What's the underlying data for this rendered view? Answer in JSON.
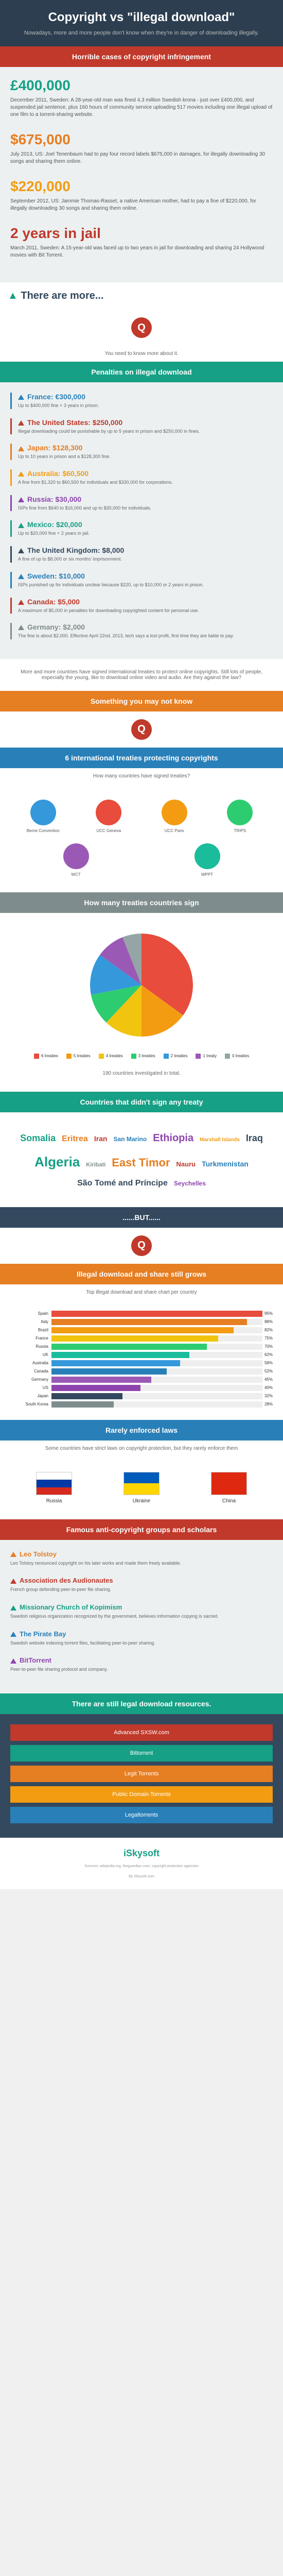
{
  "header": {
    "title": "Copyright vs \"illegal download\"",
    "subtitle": "Nowadays, more and more people don't know when they're in danger of downloading illegally."
  },
  "bands": {
    "horrible": "Horrible cases of copyright infringement",
    "penalties": "Penalties on illegal download",
    "unknown": "Something you may not know",
    "treaties": "6 international treaties protecting copyrights",
    "treaties_sub": "How many countries have signed treaties?",
    "treaty_count": "How many treaties countries sign",
    "not_signed": "Countries that didn't sign any treaty",
    "but": "......BUT......",
    "still_grows": "Illegal download and share still grows",
    "top_chart": "Top illegal download and share chart per country",
    "rarely": "Rarely enforced laws",
    "rarely_sub": "Some countries have strict laws on copyright protection, but they rarely enforce them",
    "famous": "Famous anti-copyright groups and scholars",
    "legal": "There are still legal download resources."
  },
  "cases": [
    {
      "amount": "£400,000",
      "color": "#16a085",
      "desc": "December 2011, Sweden: A 28-year-old man was fined 4.3 million Swedish krona - just over £400,000, and suspended jail sentence, plus 160 hours of community service uploading 517 movies including one illegal upload of one film to a torrent-sharing website."
    },
    {
      "amount": "$675,000",
      "color": "#e67e22",
      "desc": "July 2013, US: Joel Tenenbaum had to pay four record labels $675,000 in damages, for illegally downloading 30 songs and sharing them online."
    },
    {
      "amount": "$220,000",
      "color": "#f39c12",
      "desc": "September 2012, US: Jammie Thomas-Rasset, a native American mother, had to pay a fine of $220,000, for illegally downloading 30 songs and sharing them online."
    },
    {
      "amount": "2 years in jail",
      "color": "#c0392b",
      "desc": "March 2011, Sweden: A 15-year-old was faced up to two years in jail for downloading and sharing 24 Hollywood movies with Bit Torrent."
    }
  ],
  "more": "There are more...",
  "q_note": "You need to know more about it.",
  "penalties": [
    {
      "country": "France: €300,000",
      "color": "#2980b9",
      "desc": "Up to $400,000 fine + 3 years in prison."
    },
    {
      "country": "The United States: $250,000",
      "color": "#c0392b",
      "desc": "Illegal downloading could be punishable by up to 5 years in prison and $250,000 in fines."
    },
    {
      "country": "Japan: $128,300",
      "color": "#e67e22",
      "desc": "Up to 10 years in prison and a $128,300 fine."
    },
    {
      "country": "Australia: $60,500",
      "color": "#f39c12",
      "desc": "A fine from $1,320 to $60,500 for individuals and $330,000 for corporations."
    },
    {
      "country": "Russia: $30,000",
      "color": "#8e44ad",
      "desc": "ISPs fine from $640 to $16,000 and up to $30,000 for individuals."
    },
    {
      "country": "Mexico: $20,000",
      "color": "#16a085",
      "desc": "Up to $20,000 fine + 2 years in jail."
    },
    {
      "country": "The United Kingdom: $8,000",
      "color": "#34495e",
      "desc": "A fine of up to $8,000 or six months' imprisonment."
    },
    {
      "country": "Sweden: $10,000",
      "color": "#2980b9",
      "desc": "ISPs punished up for individuals unclear because $220, up to $10,000 or 2 years in prison."
    },
    {
      "country": "Canada: $5,000",
      "color": "#c0392b",
      "desc": "A maximum of $5,000 in penalties for downloading copyrighted content for personal use."
    },
    {
      "country": "Germany: $2,000",
      "color": "#7f8c8d",
      "desc": "The fine is about $2,000. Effective April 22nd, 2013, tech says a lost profit, first time they are liable to pay."
    }
  ],
  "penalties_note": "More and more countries have signed international treaties to protect online copyrights. Still lots of people, especially the young, like to download online video and audio. Are they against the law?",
  "treaties": [
    {
      "label": "Berne Convention",
      "color": "#3498db"
    },
    {
      "label": "UCC Geneva",
      "color": "#e74c3c"
    },
    {
      "label": "UCC Paris",
      "color": "#f39c12"
    },
    {
      "label": "TRIPS",
      "color": "#2ecc71"
    },
    {
      "label": "WCT",
      "color": "#9b59b6"
    },
    {
      "label": "WPPT",
      "color": "#1abc9c"
    }
  ],
  "pie": {
    "slices": [
      {
        "label": "6 treaties",
        "value": 35,
        "color": "#e74c3c"
      },
      {
        "label": "5 treaties",
        "value": 15,
        "color": "#f39c12"
      },
      {
        "label": "4 treaties",
        "value": 12,
        "color": "#f1c40f"
      },
      {
        "label": "3 treaties",
        "value": 10,
        "color": "#2ecc71"
      },
      {
        "label": "2 treaties",
        "value": 13,
        "color": "#3498db"
      },
      {
        "label": "1 treaty",
        "value": 9,
        "color": "#9b59b6"
      },
      {
        "label": "0 treaties",
        "value": 6,
        "color": "#95a5a6"
      }
    ],
    "total_note": "190 countries investigated in total."
  },
  "cloud": [
    {
      "text": "Somalia",
      "size": 18,
      "color": "#16a085"
    },
    {
      "text": "Eritrea",
      "size": 16,
      "color": "#e67e22"
    },
    {
      "text": "Iran",
      "size": 14,
      "color": "#c0392b"
    },
    {
      "text": "San Marino",
      "size": 12,
      "color": "#2980b9"
    },
    {
      "text": "Ethiopia",
      "size": 20,
      "color": "#8e44ad"
    },
    {
      "text": "Marshall Islands",
      "size": 10,
      "color": "#f39c12"
    },
    {
      "text": "Iraq",
      "size": 18,
      "color": "#34495e"
    },
    {
      "text": "Algeria",
      "size": 26,
      "color": "#16a085"
    },
    {
      "text": "Kiribati",
      "size": 11,
      "color": "#7f8c8d"
    },
    {
      "text": "East Timor",
      "size": 22,
      "color": "#e67e22"
    },
    {
      "text": "Nauru",
      "size": 13,
      "color": "#c0392b"
    },
    {
      "text": "Turkmenistan",
      "size": 14,
      "color": "#2980b9"
    },
    {
      "text": "São Tomé and Príncipe",
      "size": 16,
      "color": "#34495e"
    },
    {
      "text": "Seychelles",
      "size": 12,
      "color": "#8e44ad"
    }
  ],
  "bars": [
    {
      "label": "Spain",
      "value": 95,
      "color": "#e74c3c"
    },
    {
      "label": "Italy",
      "value": 88,
      "color": "#e67e22"
    },
    {
      "label": "Brazil",
      "value": 82,
      "color": "#f39c12"
    },
    {
      "label": "France",
      "value": 75,
      "color": "#f1c40f"
    },
    {
      "label": "Russia",
      "value": 70,
      "color": "#2ecc71"
    },
    {
      "label": "UK",
      "value": 62,
      "color": "#1abc9c"
    },
    {
      "label": "Australia",
      "value": 58,
      "color": "#3498db"
    },
    {
      "label": "Canada",
      "value": 52,
      "color": "#2980b9"
    },
    {
      "label": "Germany",
      "value": 45,
      "color": "#9b59b6"
    },
    {
      "label": "US",
      "value": 40,
      "color": "#8e44ad"
    },
    {
      "label": "Japan",
      "value": 32,
      "color": "#34495e"
    },
    {
      "label": "South Korea",
      "value": 28,
      "color": "#7f8c8d"
    }
  ],
  "flags": [
    {
      "label": "Russia",
      "colors": [
        "#fff",
        "#0039a6",
        "#d52b1e"
      ]
    },
    {
      "label": "Ukraine",
      "colors": [
        "#005bbb",
        "#ffd500"
      ]
    },
    {
      "label": "China",
      "colors": [
        "#de2910"
      ]
    }
  ],
  "groups": [
    {
      "name": "Leo Tolstoy",
      "color": "#e67e22",
      "desc": "Leo Tolstoy renounced copyright on his later works and made them freely available."
    },
    {
      "name": "Association des Audionautes",
      "color": "#c0392b",
      "desc": "French group defending peer-to-peer file sharing."
    },
    {
      "name": "Missionary Church of Kopimism",
      "color": "#16a085",
      "desc": "Swedish religious organization recognized by the government, believes information copying is sacred."
    },
    {
      "name": "The Pirate Bay",
      "color": "#2980b9",
      "desc": "Swedish website indexing torrent files, facilitating peer-to-peer sharing."
    },
    {
      "name": "BitTorrent",
      "color": "#8e44ad",
      "desc": "Peer-to-peer file sharing protocol and company."
    }
  ],
  "resources": [
    {
      "label": "Advanced SXSW.com",
      "color": "#c0392b"
    },
    {
      "label": "Bittorrent",
      "color": "#16a085"
    },
    {
      "label": "Legit Torrents",
      "color": "#e67e22"
    },
    {
      "label": "Public Domain Torrents",
      "color": "#f39c12"
    },
    {
      "label": "Legaltorrents",
      "color": "#2980b9"
    }
  ],
  "footer": {
    "logo": "iSkysoft",
    "sources": "Sources: wikipedia.org, theguardian.com, copyright protection agencies",
    "credit": "By iSkysoft.com"
  }
}
